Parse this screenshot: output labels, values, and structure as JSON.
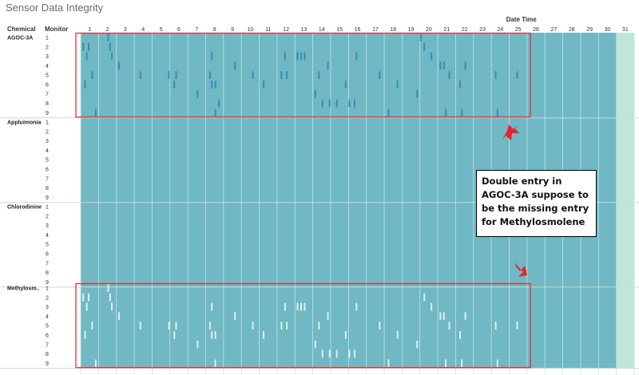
{
  "page": {
    "title": "Sensor Data Integrity"
  },
  "chart_data": {
    "type": "heatmap",
    "title": "Sensor Data Integrity",
    "column_header": "Date Time",
    "row_header_chemical": "Chemical",
    "row_header_monitor": "Monitor",
    "days": [
      "1",
      "2",
      "3",
      "4",
      "5",
      "6",
      "7",
      "8",
      "9",
      "10",
      "11",
      "12",
      "13",
      "14",
      "15",
      "16",
      "17",
      "18",
      "19",
      "20",
      "21",
      "22",
      "23",
      "24",
      "25",
      "26",
      "27",
      "28",
      "29",
      "30",
      "31"
    ],
    "chemicals": [
      "AGOC-3A",
      "Appluimonia",
      "Chlorodinine",
      "Methylosm.."
    ],
    "monitors": [
      "1",
      "2",
      "3",
      "4",
      "5",
      "6",
      "7",
      "8",
      "9"
    ],
    "day_with_no_readings": "31",
    "colors": {
      "base": "#6fb8c4",
      "darker_variation": "#2f86ac",
      "lighter_variation": "#e4f3e9",
      "no_data": "#bfe6d6",
      "highlight": "#e8222a",
      "grid": "#c9e2e6"
    },
    "variation_marks": [
      {
        "chemical": "AGOC-3A",
        "monitor": "1",
        "day": 2.5
      },
      {
        "chemical": "AGOC-3A",
        "monitor": "1",
        "day": 20.0
      },
      {
        "chemical": "AGOC-3A",
        "monitor": "2",
        "day": 1.1
      },
      {
        "chemical": "AGOC-3A",
        "monitor": "2",
        "day": 1.4
      },
      {
        "chemical": "AGOC-3A",
        "monitor": "2",
        "day": 2.6
      },
      {
        "chemical": "AGOC-3A",
        "monitor": "2",
        "day": 20.2
      },
      {
        "chemical": "AGOC-3A",
        "monitor": "3",
        "day": 1.3
      },
      {
        "chemical": "AGOC-3A",
        "monitor": "3",
        "day": 2.7
      },
      {
        "chemical": "AGOC-3A",
        "monitor": "3",
        "day": 8.3
      },
      {
        "chemical": "AGOC-3A",
        "monitor": "3",
        "day": 12.4
      },
      {
        "chemical": "AGOC-3A",
        "monitor": "3",
        "day": 13.1
      },
      {
        "chemical": "AGOC-3A",
        "monitor": "3",
        "day": 13.3
      },
      {
        "chemical": "AGOC-3A",
        "monitor": "3",
        "day": 13.5
      },
      {
        "chemical": "AGOC-3A",
        "monitor": "3",
        "day": 16.4
      },
      {
        "chemical": "AGOC-3A",
        "monitor": "3",
        "day": 20.6
      },
      {
        "chemical": "AGOC-3A",
        "monitor": "4",
        "day": 3.1
      },
      {
        "chemical": "AGOC-3A",
        "monitor": "4",
        "day": 9.6
      },
      {
        "chemical": "AGOC-3A",
        "monitor": "4",
        "day": 14.8
      },
      {
        "chemical": "AGOC-3A",
        "monitor": "4",
        "day": 21.1
      },
      {
        "chemical": "AGOC-3A",
        "monitor": "4",
        "day": 21.3
      },
      {
        "chemical": "AGOC-3A",
        "monitor": "4",
        "day": 22.5
      },
      {
        "chemical": "AGOC-3A",
        "monitor": "5",
        "day": 1.6
      },
      {
        "chemical": "AGOC-3A",
        "monitor": "5",
        "day": 4.3
      },
      {
        "chemical": "AGOC-3A",
        "monitor": "5",
        "day": 5.9
      },
      {
        "chemical": "AGOC-3A",
        "monitor": "5",
        "day": 6.3
      },
      {
        "chemical": "AGOC-3A",
        "monitor": "5",
        "day": 8.2
      },
      {
        "chemical": "AGOC-3A",
        "monitor": "5",
        "day": 10.6
      },
      {
        "chemical": "AGOC-3A",
        "monitor": "5",
        "day": 12.2
      },
      {
        "chemical": "AGOC-3A",
        "monitor": "5",
        "day": 12.5
      },
      {
        "chemical": "AGOC-3A",
        "monitor": "5",
        "day": 14.3
      },
      {
        "chemical": "AGOC-3A",
        "monitor": "5",
        "day": 17.7
      },
      {
        "chemical": "AGOC-3A",
        "monitor": "5",
        "day": 21.6
      },
      {
        "chemical": "AGOC-3A",
        "monitor": "5",
        "day": 24.2
      },
      {
        "chemical": "AGOC-3A",
        "monitor": "5",
        "day": 25.4
      },
      {
        "chemical": "AGOC-3A",
        "monitor": "6",
        "day": 1.2
      },
      {
        "chemical": "AGOC-3A",
        "monitor": "6",
        "day": 6.2
      },
      {
        "chemical": "AGOC-3A",
        "monitor": "6",
        "day": 8.3
      },
      {
        "chemical": "AGOC-3A",
        "monitor": "6",
        "day": 8.5
      },
      {
        "chemical": "AGOC-3A",
        "monitor": "6",
        "day": 11.2
      },
      {
        "chemical": "AGOC-3A",
        "monitor": "6",
        "day": 15.8
      },
      {
        "chemical": "AGOC-3A",
        "monitor": "6",
        "day": 18.7
      },
      {
        "chemical": "AGOC-3A",
        "monitor": "6",
        "day": 22.2
      },
      {
        "chemical": "AGOC-3A",
        "monitor": "7",
        "day": 7.5
      },
      {
        "chemical": "AGOC-3A",
        "monitor": "7",
        "day": 14.1
      },
      {
        "chemical": "AGOC-3A",
        "monitor": "7",
        "day": 19.8
      },
      {
        "chemical": "AGOC-3A",
        "monitor": "8",
        "day": 14.5
      },
      {
        "chemical": "AGOC-3A",
        "monitor": "8",
        "day": 14.9
      },
      {
        "chemical": "AGOC-3A",
        "monitor": "8",
        "day": 15.3
      },
      {
        "chemical": "AGOC-3A",
        "monitor": "8",
        "day": 16.0
      },
      {
        "chemical": "AGOC-3A",
        "monitor": "8",
        "day": 16.3
      },
      {
        "chemical": "AGOC-3A",
        "monitor": "8",
        "day": 8.7
      },
      {
        "chemical": "AGOC-3A",
        "monitor": "9",
        "day": 1.8
      },
      {
        "chemical": "AGOC-3A",
        "monitor": "9",
        "day": 8.5
      },
      {
        "chemical": "AGOC-3A",
        "monitor": "9",
        "day": 18.2
      },
      {
        "chemical": "AGOC-3A",
        "monitor": "9",
        "day": 21.4
      },
      {
        "chemical": "AGOC-3A",
        "monitor": "9",
        "day": 22.3
      },
      {
        "chemical": "AGOC-3A",
        "monitor": "9",
        "day": 24.3
      },
      {
        "chemical": "Methylosm..",
        "monitor": "1",
        "day": 2.5
      },
      {
        "chemical": "Methylosm..",
        "monitor": "2",
        "day": 1.1
      },
      {
        "chemical": "Methylosm..",
        "monitor": "2",
        "day": 1.4
      },
      {
        "chemical": "Methylosm..",
        "monitor": "2",
        "day": 2.6
      },
      {
        "chemical": "Methylosm..",
        "monitor": "2",
        "day": 20.2
      },
      {
        "chemical": "Methylosm..",
        "monitor": "3",
        "day": 1.3
      },
      {
        "chemical": "Methylosm..",
        "monitor": "3",
        "day": 2.7
      },
      {
        "chemical": "Methylosm..",
        "monitor": "3",
        "day": 8.3
      },
      {
        "chemical": "Methylosm..",
        "monitor": "3",
        "day": 12.4
      },
      {
        "chemical": "Methylosm..",
        "monitor": "3",
        "day": 13.1
      },
      {
        "chemical": "Methylosm..",
        "monitor": "3",
        "day": 13.3
      },
      {
        "chemical": "Methylosm..",
        "monitor": "3",
        "day": 13.5
      },
      {
        "chemical": "Methylosm..",
        "monitor": "3",
        "day": 16.4
      },
      {
        "chemical": "Methylosm..",
        "monitor": "3",
        "day": 20.6
      },
      {
        "chemical": "Methylosm..",
        "monitor": "4",
        "day": 3.1
      },
      {
        "chemical": "Methylosm..",
        "monitor": "4",
        "day": 9.6
      },
      {
        "chemical": "Methylosm..",
        "monitor": "4",
        "day": 14.8
      },
      {
        "chemical": "Methylosm..",
        "monitor": "4",
        "day": 21.1
      },
      {
        "chemical": "Methylosm..",
        "monitor": "4",
        "day": 21.3
      },
      {
        "chemical": "Methylosm..",
        "monitor": "4",
        "day": 22.5
      },
      {
        "chemical": "Methylosm..",
        "monitor": "5",
        "day": 1.6
      },
      {
        "chemical": "Methylosm..",
        "monitor": "5",
        "day": 4.3
      },
      {
        "chemical": "Methylosm..",
        "monitor": "5",
        "day": 5.9
      },
      {
        "chemical": "Methylosm..",
        "monitor": "5",
        "day": 6.3
      },
      {
        "chemical": "Methylosm..",
        "monitor": "5",
        "day": 8.2
      },
      {
        "chemical": "Methylosm..",
        "monitor": "5",
        "day": 10.6
      },
      {
        "chemical": "Methylosm..",
        "monitor": "5",
        "day": 12.2
      },
      {
        "chemical": "Methylosm..",
        "monitor": "5",
        "day": 12.5
      },
      {
        "chemical": "Methylosm..",
        "monitor": "5",
        "day": 14.3
      },
      {
        "chemical": "Methylosm..",
        "monitor": "5",
        "day": 17.7
      },
      {
        "chemical": "Methylosm..",
        "monitor": "5",
        "day": 21.6
      },
      {
        "chemical": "Methylosm..",
        "monitor": "5",
        "day": 24.2
      },
      {
        "chemical": "Methylosm..",
        "monitor": "5",
        "day": 25.4
      },
      {
        "chemical": "Methylosm..",
        "monitor": "6",
        "day": 1.2
      },
      {
        "chemical": "Methylosm..",
        "monitor": "6",
        "day": 6.2
      },
      {
        "chemical": "Methylosm..",
        "monitor": "6",
        "day": 8.3
      },
      {
        "chemical": "Methylosm..",
        "monitor": "6",
        "day": 8.5
      },
      {
        "chemical": "Methylosm..",
        "monitor": "6",
        "day": 11.2
      },
      {
        "chemical": "Methylosm..",
        "monitor": "6",
        "day": 15.8
      },
      {
        "chemical": "Methylosm..",
        "monitor": "6",
        "day": 18.7
      },
      {
        "chemical": "Methylosm..",
        "monitor": "6",
        "day": 22.2
      },
      {
        "chemical": "Methylosm..",
        "monitor": "7",
        "day": 7.5
      },
      {
        "chemical": "Methylosm..",
        "monitor": "7",
        "day": 14.1
      },
      {
        "chemical": "Methylosm..",
        "monitor": "7",
        "day": 19.8
      },
      {
        "chemical": "Methylosm..",
        "monitor": "8",
        "day": 14.5
      },
      {
        "chemical": "Methylosm..",
        "monitor": "8",
        "day": 14.9
      },
      {
        "chemical": "Methylosm..",
        "monitor": "8",
        "day": 15.3
      },
      {
        "chemical": "Methylosm..",
        "monitor": "8",
        "day": 16.0
      },
      {
        "chemical": "Methylosm..",
        "monitor": "8",
        "day": 16.3
      },
      {
        "chemical": "Methylosm..",
        "monitor": "9",
        "day": 1.8
      },
      {
        "chemical": "Methylosm..",
        "monitor": "9",
        "day": 8.5
      },
      {
        "chemical": "Methylosm..",
        "monitor": "9",
        "day": 18.2
      },
      {
        "chemical": "Methylosm..",
        "monitor": "9",
        "day": 21.4
      },
      {
        "chemical": "Methylosm..",
        "monitor": "9",
        "day": 22.3
      },
      {
        "chemical": "Methylosm..",
        "monitor": "9",
        "day": 24.3
      }
    ],
    "highlighted_panes": [
      "AGOC-3A",
      "Methylosm.."
    ],
    "annotation": "Double entry in AGOC-3A suppose to be the missing entry for Methylosmolene"
  }
}
